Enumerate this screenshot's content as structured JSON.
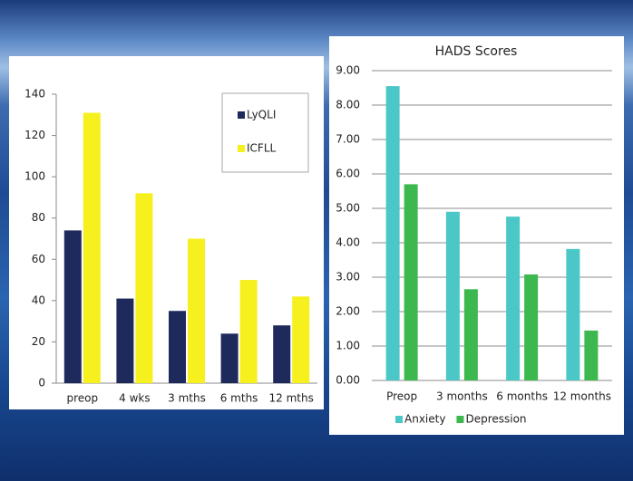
{
  "chart_data": [
    {
      "type": "bar",
      "categories": [
        "preop",
        "4 wks",
        "3 mths",
        "6 mths",
        "12 mths"
      ],
      "series": [
        {
          "name": "LyQLI",
          "color": "#1f2a5c",
          "values": [
            74,
            41,
            35,
            24,
            28
          ]
        },
        {
          "name": "ICFLL",
          "color": "#f5f01e",
          "values": [
            131,
            92,
            70,
            50,
            42
          ]
        }
      ],
      "ylim": [
        0,
        140
      ],
      "yticks": [
        0,
        20,
        40,
        60,
        80,
        100,
        120,
        140
      ],
      "grid": false,
      "legend": "upper right"
    },
    {
      "type": "bar",
      "title": "HADS Scores",
      "categories": [
        "Preop",
        "3 months",
        "6 months",
        "12 months"
      ],
      "series": [
        {
          "name": "Anxiety",
          "color": "#4cc7c7",
          "values": [
            8.55,
            4.9,
            4.76,
            3.82
          ]
        },
        {
          "name": "Depression",
          "color": "#3db84e",
          "values": [
            5.7,
            2.65,
            3.08,
            1.45
          ]
        }
      ],
      "ylim": [
        0,
        9
      ],
      "yticks": [
        {
          "value": 0,
          "label": "0.00"
        },
        {
          "value": 1,
          "label": "1.00"
        },
        {
          "value": 2,
          "label": "2.00"
        },
        {
          "value": 3,
          "label": "3.00"
        },
        {
          "value": 4,
          "label": "4.00"
        },
        {
          "value": 5,
          "label": "5.00"
        },
        {
          "value": 6,
          "label": "6.00"
        },
        {
          "value": 7,
          "label": "7.00"
        },
        {
          "value": 8,
          "label": "8.00"
        },
        {
          "value": 9,
          "label": "9.00"
        }
      ],
      "grid": true,
      "legend": "bottom"
    }
  ]
}
